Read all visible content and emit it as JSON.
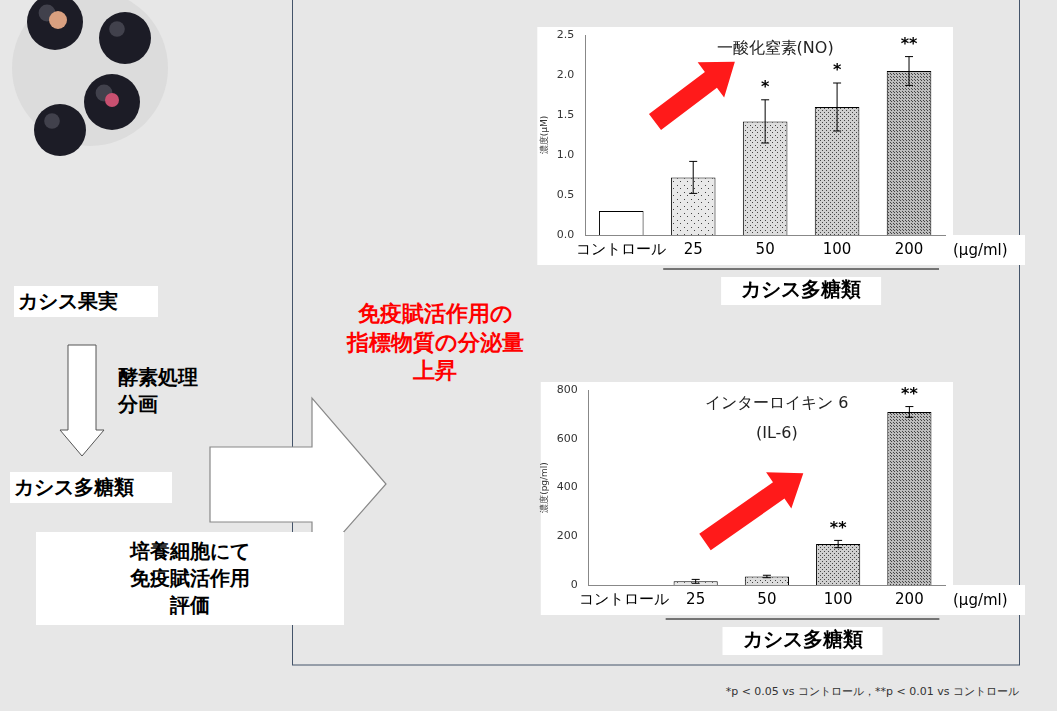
{
  "chart_data": [
    {
      "type": "bar",
      "title": "一酸化窒素(NO)",
      "y_label": "濃度(μM)",
      "x_label": "カシス多糖類",
      "x_unit_label": "(μg/ml)",
      "categories": [
        "コントロール",
        "25",
        "50",
        "100",
        "200"
      ],
      "values": [
        0.3,
        0.72,
        1.42,
        1.6,
        2.05
      ],
      "errors": [
        0,
        0.2,
        0.27,
        0.3,
        0.18
      ],
      "significance": [
        null,
        null,
        "*",
        "*",
        "**"
      ],
      "colors": [
        "#ffffff",
        "#e9e9e9",
        "#dddddd",
        "#d0d0d0",
        "#bdbdbd"
      ],
      "ylim": [
        0,
        2.5
      ],
      "yticks": [
        {
          "value": 0,
          "label": "0.0"
        },
        {
          "value": 0.5,
          "label": "0.5"
        },
        {
          "value": 1,
          "label": "1.0"
        },
        {
          "value": 1.5,
          "label": "1.5"
        },
        {
          "value": 2,
          "label": "2.0"
        },
        {
          "value": 2.5,
          "label": "2.5"
        }
      ],
      "grid": false
    },
    {
      "type": "bar",
      "title": "インターロイキン 6\n(IL-6)",
      "y_label": "濃度(pg/ml)",
      "x_label": "カシス多糖類",
      "x_unit_label": "(μg/ml)",
      "categories": [
        "コントロール",
        "25",
        "50",
        "100",
        "200"
      ],
      "values": [
        0,
        15,
        35,
        168,
        710
      ],
      "errors": [
        0,
        8,
        5,
        15,
        22
      ],
      "significance": [
        null,
        null,
        null,
        "**",
        "**"
      ],
      "colors": [
        "#ffffff",
        "#e9e9e9",
        "#dddddd",
        "#d0d0d0",
        "#bdbdbd"
      ],
      "ylim": [
        0,
        800
      ],
      "yticks": [
        0,
        200,
        400,
        600,
        800
      ],
      "grid": false
    }
  ],
  "diagram": {
    "fruit_label": "カシス果実",
    "process_label": [
      "酵素処理",
      "分画"
    ],
    "product_label": "カシス多糖類",
    "assay_label": [
      "培養細胞にて",
      "免疫賦活作用",
      "評価"
    ],
    "result_label": [
      "免疫賦活作用の",
      "指標物質の分泌量",
      "上昇"
    ],
    "footnote": "*p < 0.05 vs コントロール，**p < 0.01 vs  コントロール"
  }
}
